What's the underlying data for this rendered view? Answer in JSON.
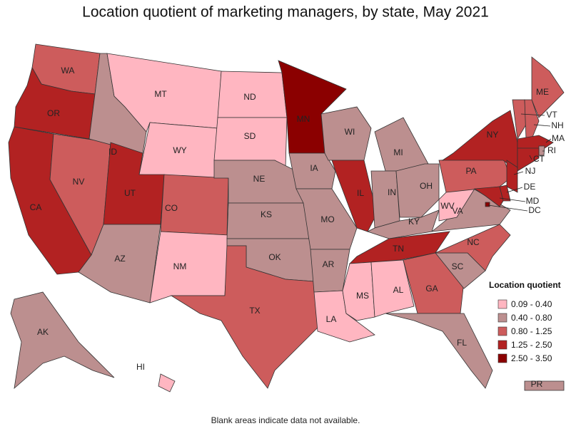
{
  "title": "Location quotient of marketing managers, by state, May 2021",
  "footnote": "Blank areas indicate data not available.",
  "legend": {
    "title": "Location quotient",
    "items": [
      {
        "label": "0.09 - 0.40",
        "color": "#ffb6c1"
      },
      {
        "label": "0.40 - 0.80",
        "color": "#bc8f8f"
      },
      {
        "label": "0.80 - 1.25",
        "color": "#cd5c5c"
      },
      {
        "label": "1.25 - 2.50",
        "color": "#b22222"
      },
      {
        "label": "2.50 - 3.50",
        "color": "#8b0000"
      }
    ]
  },
  "states": [
    {
      "label": "WA",
      "class": 2
    },
    {
      "label": "OR",
      "class": 3
    },
    {
      "label": "CA",
      "class": 3
    },
    {
      "label": "NV",
      "class": 2
    },
    {
      "label": "ID",
      "class": 1
    },
    {
      "label": "MT",
      "class": 0
    },
    {
      "label": "WY",
      "class": 0
    },
    {
      "label": "UT",
      "class": 3
    },
    {
      "label": "AZ",
      "class": 1
    },
    {
      "label": "CO",
      "class": 2
    },
    {
      "label": "NM",
      "class": 0
    },
    {
      "label": "ND",
      "class": 0
    },
    {
      "label": "SD",
      "class": 0
    },
    {
      "label": "NE",
      "class": 1
    },
    {
      "label": "KS",
      "class": 1
    },
    {
      "label": "OK",
      "class": 1
    },
    {
      "label": "TX",
      "class": 2
    },
    {
      "label": "MN",
      "class": 4
    },
    {
      "label": "IA",
      "class": 1
    },
    {
      "label": "MO",
      "class": 1
    },
    {
      "label": "AR",
      "class": 1
    },
    {
      "label": "LA",
      "class": 0
    },
    {
      "label": "WI",
      "class": 1
    },
    {
      "label": "IL",
      "class": 3
    },
    {
      "label": "MI",
      "class": 1
    },
    {
      "label": "IN",
      "class": 1
    },
    {
      "label": "OH",
      "class": 1
    },
    {
      "label": "KY",
      "class": 1
    },
    {
      "label": "TN",
      "class": 3
    },
    {
      "label": "MS",
      "class": 0
    },
    {
      "label": "AL",
      "class": 0
    },
    {
      "label": "GA",
      "class": 2
    },
    {
      "label": "FL",
      "class": 1
    },
    {
      "label": "SC",
      "class": 1
    },
    {
      "label": "NC",
      "class": 2
    },
    {
      "label": "VA",
      "class": 1
    },
    {
      "label": "WV",
      "class": 0
    },
    {
      "label": "PA",
      "class": 2
    },
    {
      "label": "NY",
      "class": 3
    },
    {
      "label": "ME",
      "class": 2
    },
    {
      "label": "VT",
      "class": 2
    },
    {
      "label": "NH",
      "class": 2
    },
    {
      "label": "MA",
      "class": 3
    },
    {
      "label": "RI",
      "class": 1
    },
    {
      "label": "CT",
      "class": 3
    },
    {
      "label": "NJ",
      "class": 3
    },
    {
      "label": "DE",
      "class": 3
    },
    {
      "label": "MD",
      "class": 3
    },
    {
      "label": "DC",
      "class": 4
    },
    {
      "label": "AK",
      "class": 1
    },
    {
      "label": "HI",
      "class": 0
    },
    {
      "label": "PR",
      "class": 1
    }
  ]
}
